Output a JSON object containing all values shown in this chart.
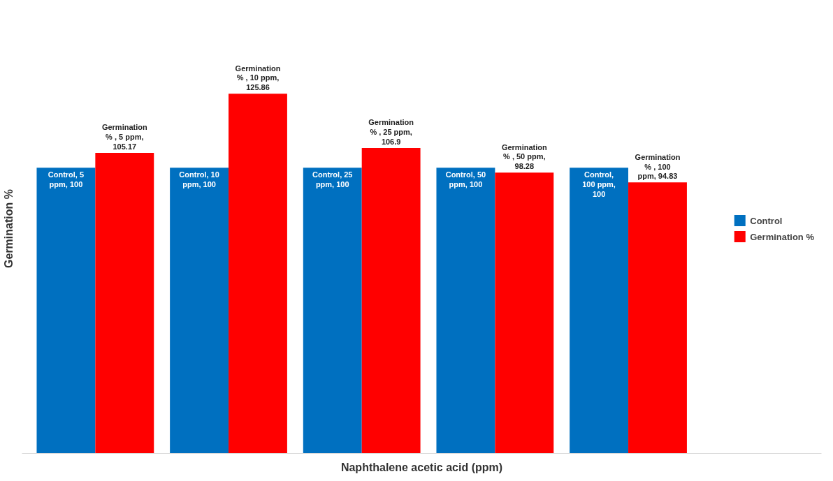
{
  "chart_data": {
    "type": "bar",
    "xlabel": "Naphthalene acetic acid (ppm)",
    "ylabel": "Germination %",
    "categories": [
      null,
      null,
      null,
      null,
      null
    ],
    "series": [
      {
        "name": "Control",
        "color": "#0070c0",
        "values": [
          100,
          100,
          100,
          100,
          100
        ],
        "value_labels": [
          "Control, 5 ppm, 100",
          "Control, 10 ppm, 100",
          "Control, 25 ppm, 100",
          "Control, 50 ppm, 100",
          "Control, 100 ppm, 100"
        ]
      },
      {
        "name": "Germination %",
        "color": "#ff0000",
        "values": [
          105.17,
          125.86,
          106.9,
          98.28,
          94.83
        ],
        "value_labels": [
          "Germination % , 5 ppm, 105.17",
          "Germination % , 10 ppm, 125.86",
          "Germination % , 25 ppm, 106.9",
          "Germination % , 50 ppm, 98.28",
          "Germination % , 100 ppm, 94.83"
        ]
      }
    ],
    "legend": "right",
    "grid": false,
    "tick_labels": false
  }
}
